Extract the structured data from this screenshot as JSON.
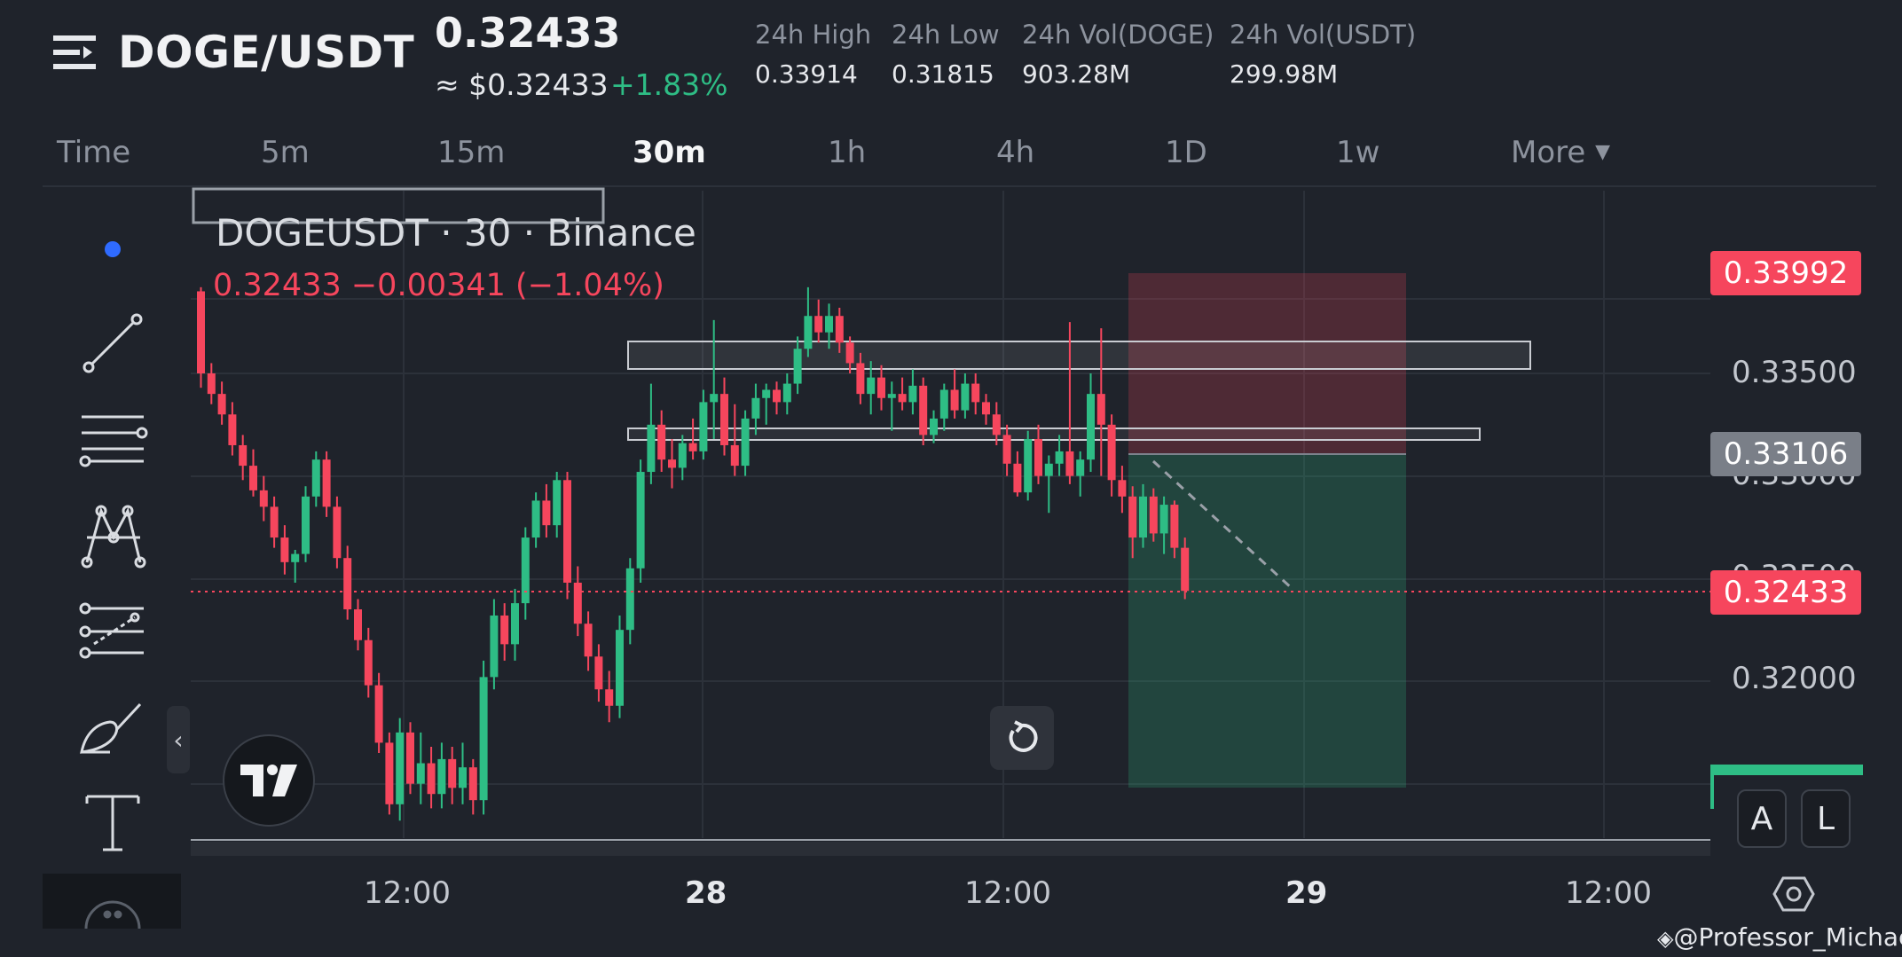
{
  "header": {
    "pair": "DOGE/USDT",
    "last_price": "0.32433",
    "usd_price": "≈ $0.32433",
    "change_pct": "+1.83%",
    "stats": [
      {
        "label": "24h High",
        "value": "0.33914"
      },
      {
        "label": "24h Low",
        "value": "0.31815"
      },
      {
        "label": "24h Vol(DOGE)",
        "value": "903.28M"
      },
      {
        "label": "24h Vol(USDT)",
        "value": "299.98M"
      }
    ]
  },
  "intervals": [
    "Time",
    "5m",
    "15m",
    "30m",
    "1h",
    "4h",
    "1D",
    "1w",
    "More"
  ],
  "active_interval": "30m",
  "legend": {
    "title": "DOGEUSDT · 30 · Binance",
    "values": "0.32433  −0.00341 (−1.04%)"
  },
  "colors": {
    "up": "#2ebd85",
    "down": "#f6465d",
    "bg": "#1f232b"
  },
  "chart_data": {
    "type": "candlestick",
    "y_ticks": [
      "0.33500",
      "0.33000",
      "0.32500",
      "0.32000"
    ],
    "x_ticks": [
      "12:00",
      "28",
      "12:00",
      "29",
      "12:00"
    ],
    "price_labels": {
      "stop": "0.33992",
      "entry": "0.33106",
      "last": "0.32433"
    },
    "candles": [
      {
        "o": 0.339,
        "h": 0.3392,
        "l": 0.3343,
        "c": 0.335
      },
      {
        "o": 0.335,
        "h": 0.3355,
        "l": 0.3335,
        "c": 0.334
      },
      {
        "o": 0.334,
        "h": 0.3346,
        "l": 0.3325,
        "c": 0.333
      },
      {
        "o": 0.333,
        "h": 0.3336,
        "l": 0.331,
        "c": 0.3315
      },
      {
        "o": 0.3315,
        "h": 0.332,
        "l": 0.3298,
        "c": 0.3305
      },
      {
        "o": 0.3305,
        "h": 0.3313,
        "l": 0.329,
        "c": 0.3293
      },
      {
        "o": 0.3293,
        "h": 0.33,
        "l": 0.3278,
        "c": 0.3285
      },
      {
        "o": 0.3285,
        "h": 0.329,
        "l": 0.3265,
        "c": 0.327
      },
      {
        "o": 0.327,
        "h": 0.3276,
        "l": 0.3252,
        "c": 0.3258
      },
      {
        "o": 0.3258,
        "h": 0.3264,
        "l": 0.3248,
        "c": 0.3262
      },
      {
        "o": 0.3262,
        "h": 0.3295,
        "l": 0.3258,
        "c": 0.329
      },
      {
        "o": 0.329,
        "h": 0.3312,
        "l": 0.3285,
        "c": 0.3308
      },
      {
        "o": 0.3308,
        "h": 0.3312,
        "l": 0.328,
        "c": 0.3285
      },
      {
        "o": 0.3285,
        "h": 0.329,
        "l": 0.3255,
        "c": 0.326
      },
      {
        "o": 0.326,
        "h": 0.3266,
        "l": 0.323,
        "c": 0.3235
      },
      {
        "o": 0.3235,
        "h": 0.324,
        "l": 0.3215,
        "c": 0.322
      },
      {
        "o": 0.322,
        "h": 0.3226,
        "l": 0.3192,
        "c": 0.3198
      },
      {
        "o": 0.3198,
        "h": 0.3204,
        "l": 0.3165,
        "c": 0.317
      },
      {
        "o": 0.317,
        "h": 0.3175,
        "l": 0.3135,
        "c": 0.314
      },
      {
        "o": 0.314,
        "h": 0.3182,
        "l": 0.3132,
        "c": 0.3175
      },
      {
        "o": 0.3175,
        "h": 0.318,
        "l": 0.3145,
        "c": 0.315
      },
      {
        "o": 0.315,
        "h": 0.3175,
        "l": 0.314,
        "c": 0.316
      },
      {
        "o": 0.316,
        "h": 0.3168,
        "l": 0.3138,
        "c": 0.3145
      },
      {
        "o": 0.3145,
        "h": 0.317,
        "l": 0.3138,
        "c": 0.3162
      },
      {
        "o": 0.3162,
        "h": 0.3168,
        "l": 0.314,
        "c": 0.3148
      },
      {
        "o": 0.3148,
        "h": 0.317,
        "l": 0.314,
        "c": 0.3158
      },
      {
        "o": 0.3158,
        "h": 0.3162,
        "l": 0.3135,
        "c": 0.3142
      },
      {
        "o": 0.3142,
        "h": 0.321,
        "l": 0.3135,
        "c": 0.3202
      },
      {
        "o": 0.3202,
        "h": 0.324,
        "l": 0.3196,
        "c": 0.3232
      },
      {
        "o": 0.3232,
        "h": 0.3238,
        "l": 0.321,
        "c": 0.3218
      },
      {
        "o": 0.3218,
        "h": 0.3245,
        "l": 0.321,
        "c": 0.3238
      },
      {
        "o": 0.3238,
        "h": 0.3275,
        "l": 0.323,
        "c": 0.327
      },
      {
        "o": 0.327,
        "h": 0.3292,
        "l": 0.3265,
        "c": 0.3288
      },
      {
        "o": 0.3288,
        "h": 0.3296,
        "l": 0.327,
        "c": 0.3276
      },
      {
        "o": 0.3276,
        "h": 0.3302,
        "l": 0.327,
        "c": 0.3298
      },
      {
        "o": 0.3298,
        "h": 0.3302,
        "l": 0.324,
        "c": 0.3248
      },
      {
        "o": 0.3248,
        "h": 0.3256,
        "l": 0.3222,
        "c": 0.3228
      },
      {
        "o": 0.3228,
        "h": 0.3234,
        "l": 0.3205,
        "c": 0.3212
      },
      {
        "o": 0.3212,
        "h": 0.3218,
        "l": 0.319,
        "c": 0.3196
      },
      {
        "o": 0.3196,
        "h": 0.3205,
        "l": 0.318,
        "c": 0.3188
      },
      {
        "o": 0.3188,
        "h": 0.3232,
        "l": 0.3182,
        "c": 0.3225
      },
      {
        "o": 0.3225,
        "h": 0.326,
        "l": 0.3218,
        "c": 0.3255
      },
      {
        "o": 0.3255,
        "h": 0.3308,
        "l": 0.3248,
        "c": 0.3302
      },
      {
        "o": 0.3302,
        "h": 0.3345,
        "l": 0.3296,
        "c": 0.3325
      },
      {
        "o": 0.3325,
        "h": 0.3332,
        "l": 0.3302,
        "c": 0.3308
      },
      {
        "o": 0.3308,
        "h": 0.3318,
        "l": 0.3294,
        "c": 0.3304
      },
      {
        "o": 0.3304,
        "h": 0.332,
        "l": 0.3298,
        "c": 0.3316
      },
      {
        "o": 0.3316,
        "h": 0.3328,
        "l": 0.3308,
        "c": 0.3312
      },
      {
        "o": 0.3312,
        "h": 0.3342,
        "l": 0.3308,
        "c": 0.3336
      },
      {
        "o": 0.3336,
        "h": 0.3376,
        "l": 0.3318,
        "c": 0.334
      },
      {
        "o": 0.334,
        "h": 0.3348,
        "l": 0.331,
        "c": 0.3315
      },
      {
        "o": 0.3315,
        "h": 0.3335,
        "l": 0.33,
        "c": 0.3305
      },
      {
        "o": 0.3305,
        "h": 0.3332,
        "l": 0.33,
        "c": 0.3328
      },
      {
        "o": 0.3328,
        "h": 0.3345,
        "l": 0.332,
        "c": 0.3338
      },
      {
        "o": 0.3338,
        "h": 0.3345,
        "l": 0.3325,
        "c": 0.3342
      },
      {
        "o": 0.3342,
        "h": 0.3346,
        "l": 0.333,
        "c": 0.3336
      },
      {
        "o": 0.3336,
        "h": 0.335,
        "l": 0.333,
        "c": 0.3345
      },
      {
        "o": 0.3345,
        "h": 0.3368,
        "l": 0.334,
        "c": 0.3362
      },
      {
        "o": 0.3362,
        "h": 0.3392,
        "l": 0.3358,
        "c": 0.3378
      },
      {
        "o": 0.3378,
        "h": 0.3386,
        "l": 0.3365,
        "c": 0.337
      },
      {
        "o": 0.337,
        "h": 0.3384,
        "l": 0.3362,
        "c": 0.3378
      },
      {
        "o": 0.3378,
        "h": 0.3382,
        "l": 0.336,
        "c": 0.3365
      },
      {
        "o": 0.3365,
        "h": 0.3368,
        "l": 0.335,
        "c": 0.3355
      },
      {
        "o": 0.3355,
        "h": 0.336,
        "l": 0.3335,
        "c": 0.334
      },
      {
        "o": 0.334,
        "h": 0.3356,
        "l": 0.333,
        "c": 0.3348
      },
      {
        "o": 0.3348,
        "h": 0.3354,
        "l": 0.3332,
        "c": 0.3338
      },
      {
        "o": 0.3338,
        "h": 0.3346,
        "l": 0.3322,
        "c": 0.334
      },
      {
        "o": 0.334,
        "h": 0.3348,
        "l": 0.3332,
        "c": 0.3336
      },
      {
        "o": 0.3336,
        "h": 0.3352,
        "l": 0.333,
        "c": 0.3344
      },
      {
        "o": 0.3344,
        "h": 0.3348,
        "l": 0.3315,
        "c": 0.332
      },
      {
        "o": 0.332,
        "h": 0.3332,
        "l": 0.3316,
        "c": 0.3328
      },
      {
        "o": 0.3328,
        "h": 0.3345,
        "l": 0.3322,
        "c": 0.3342
      },
      {
        "o": 0.3342,
        "h": 0.3352,
        "l": 0.3328,
        "c": 0.3332
      },
      {
        "o": 0.3332,
        "h": 0.335,
        "l": 0.3328,
        "c": 0.3345
      },
      {
        "o": 0.3345,
        "h": 0.335,
        "l": 0.333,
        "c": 0.3336
      },
      {
        "o": 0.3336,
        "h": 0.334,
        "l": 0.3325,
        "c": 0.333
      },
      {
        "o": 0.333,
        "h": 0.3336,
        "l": 0.3315,
        "c": 0.332
      },
      {
        "o": 0.332,
        "h": 0.3325,
        "l": 0.33,
        "c": 0.3306
      },
      {
        "o": 0.3306,
        "h": 0.3312,
        "l": 0.329,
        "c": 0.3292
      },
      {
        "o": 0.3292,
        "h": 0.3322,
        "l": 0.3288,
        "c": 0.3318
      },
      {
        "o": 0.3318,
        "h": 0.3325,
        "l": 0.3296,
        "c": 0.33
      },
      {
        "o": 0.33,
        "h": 0.331,
        "l": 0.3282,
        "c": 0.3306
      },
      {
        "o": 0.3306,
        "h": 0.332,
        "l": 0.33,
        "c": 0.3312
      },
      {
        "o": 0.3312,
        "h": 0.3375,
        "l": 0.3296,
        "c": 0.33
      },
      {
        "o": 0.33,
        "h": 0.3312,
        "l": 0.329,
        "c": 0.3308
      },
      {
        "o": 0.3308,
        "h": 0.335,
        "l": 0.3302,
        "c": 0.334
      },
      {
        "o": 0.334,
        "h": 0.3372,
        "l": 0.33,
        "c": 0.3325
      },
      {
        "o": 0.3325,
        "h": 0.333,
        "l": 0.329,
        "c": 0.3298
      },
      {
        "o": 0.3298,
        "h": 0.3305,
        "l": 0.3282,
        "c": 0.329
      },
      {
        "o": 0.329,
        "h": 0.3295,
        "l": 0.326,
        "c": 0.327
      },
      {
        "o": 0.327,
        "h": 0.3296,
        "l": 0.3265,
        "c": 0.329
      },
      {
        "o": 0.329,
        "h": 0.3294,
        "l": 0.3268,
        "c": 0.3272
      },
      {
        "o": 0.3272,
        "h": 0.329,
        "l": 0.3262,
        "c": 0.3286
      },
      {
        "o": 0.3286,
        "h": 0.3288,
        "l": 0.326,
        "c": 0.3265
      },
      {
        "o": 0.3265,
        "h": 0.327,
        "l": 0.324,
        "c": 0.3244
      }
    ]
  },
  "toolbar": {
    "tools": [
      "cursor-dot",
      "trend-line",
      "horizontal-lines",
      "pattern",
      "fib-channel",
      "brush",
      "text",
      "more"
    ],
    "scale_a": "A",
    "scale_l": "L"
  },
  "watermark": "@Professor_Michael"
}
